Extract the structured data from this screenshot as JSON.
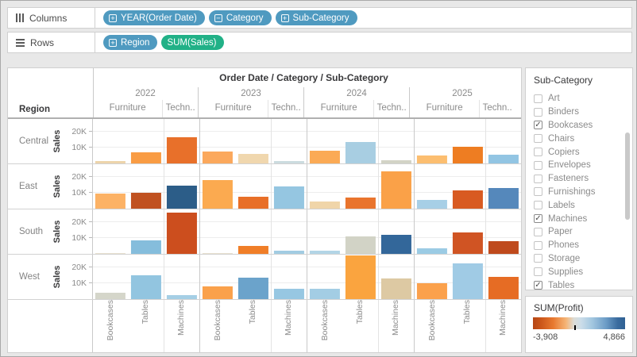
{
  "shelves": {
    "columns": {
      "label": "Columns",
      "pills": [
        {
          "label": "YEAR(Order Date)",
          "icon": "plus",
          "kind": "dimension"
        },
        {
          "label": "Category",
          "icon": "minus",
          "kind": "dimension"
        },
        {
          "label": "Sub-Category",
          "icon": "plus",
          "kind": "dimension"
        }
      ]
    },
    "rows": {
      "label": "Rows",
      "pills": [
        {
          "label": "Region",
          "icon": "plus",
          "kind": "dimension"
        },
        {
          "label": "SUM(Sales)",
          "icon": "none",
          "kind": "measure"
        }
      ]
    }
  },
  "colors": {
    "dimension_pill": "#4f9ac0",
    "measure_pill": "#21b187"
  },
  "chart_data": {
    "type": "bar",
    "title": "Order Date / Category / Sub-Category",
    "row_field": "Region",
    "years": [
      "2022",
      "2023",
      "2024",
      "2025"
    ],
    "categories": [
      "Furniture",
      "Techn.."
    ],
    "subcategories": [
      "Bookcases",
      "Tables",
      "Machines"
    ],
    "ylabel": "Sales",
    "yticks": [
      "20K",
      "10K"
    ],
    "ylim_k": [
      0,
      28
    ],
    "units": "sales values in thousands (K); bar colors encode SUM(Profit) diverging orange-blue",
    "rows": [
      {
        "region": "Central",
        "cells": [
          {
            "year": "2022",
            "values": [
              1.7,
              7.0,
              16.5
            ],
            "colors": [
              "#edd4ab",
              "#f99c44",
              "#e8702a"
            ]
          },
          {
            "year": "2023",
            "values": [
              7.5,
              6.0,
              1.3
            ],
            "colors": [
              "#fba85c",
              "#f0d7ae",
              "#ccdcdf"
            ]
          },
          {
            "year": "2024",
            "values": [
              7.8,
              13.5,
              2.0
            ],
            "colors": [
              "#fbaa55",
              "#a8cee2",
              "#d2d3c6"
            ]
          },
          {
            "year": "2025",
            "values": [
              5.2,
              10.3,
              5.5
            ],
            "colors": [
              "#fcbe70",
              "#ee7d22",
              "#92c5e3"
            ]
          }
        ]
      },
      {
        "region": "East",
        "cells": [
          {
            "year": "2022",
            "values": [
              9.4,
              10.0,
              14.4
            ],
            "colors": [
              "#fcb265",
              "#c05120",
              "#2c5d88"
            ]
          },
          {
            "year": "2023",
            "values": [
              18.0,
              7.4,
              13.8
            ],
            "colors": [
              "#fbaa50",
              "#e86f28",
              "#95c6e1"
            ]
          },
          {
            "year": "2024",
            "values": [
              4.4,
              6.9,
              23.5
            ],
            "colors": [
              "#f0d5a9",
              "#e9742d",
              "#faa148"
            ]
          },
          {
            "year": "2025",
            "values": [
              5.4,
              11.3,
              12.8
            ],
            "colors": [
              "#a7cfe6",
              "#d85a21",
              "#5588bb"
            ]
          }
        ]
      },
      {
        "region": "South",
        "cells": [
          {
            "year": "2022",
            "values": [
              0.3,
              8.3,
              26.0
            ],
            "colors": [
              "#e8e0cf",
              "#85bddc",
              "#cc4e1e"
            ]
          },
          {
            "year": "2023",
            "values": [
              0.4,
              5.0,
              2.1
            ],
            "colors": [
              "#e8e0cf",
              "#f07e28",
              "#a2cce2"
            ]
          },
          {
            "year": "2024",
            "values": [
              2.1,
              10.8,
              12.2
            ],
            "colors": [
              "#b3d5e6",
              "#d2d3c6",
              "#33679a"
            ]
          },
          {
            "year": "2025",
            "values": [
              3.3,
              13.3,
              7.8
            ],
            "colors": [
              "#9bcbe4",
              "#d05423",
              "#bf4a1d"
            ]
          }
        ]
      },
      {
        "region": "West",
        "cells": [
          {
            "year": "2022",
            "values": [
              4.1,
              15.2,
              2.4
            ],
            "colors": [
              "#d5d6ca",
              "#92c5e0",
              "#a5cfe5"
            ]
          },
          {
            "year": "2023",
            "values": [
              8.0,
              13.5,
              6.5
            ],
            "colors": [
              "#faa14b",
              "#6ba3cb",
              "#97c7e2"
            ]
          },
          {
            "year": "2024",
            "values": [
              6.5,
              27.5,
              13.0
            ],
            "colors": [
              "#a3cde4",
              "#faa43f",
              "#ddc9a3"
            ]
          },
          {
            "year": "2025",
            "values": [
              10.0,
              22.5,
              14.0
            ],
            "colors": [
              "#fba14c",
              "#a0cbe5",
              "#e66c24"
            ]
          }
        ]
      }
    ]
  },
  "filter": {
    "title": "Sub-Category",
    "items": [
      {
        "label": "Art",
        "checked": false
      },
      {
        "label": "Binders",
        "checked": false
      },
      {
        "label": "Bookcases",
        "checked": true
      },
      {
        "label": "Chairs",
        "checked": false
      },
      {
        "label": "Copiers",
        "checked": false
      },
      {
        "label": "Envelopes",
        "checked": false
      },
      {
        "label": "Fasteners",
        "checked": false
      },
      {
        "label": "Furnishings",
        "checked": false
      },
      {
        "label": "Labels",
        "checked": false
      },
      {
        "label": "Machines",
        "checked": true
      },
      {
        "label": "Paper",
        "checked": false
      },
      {
        "label": "Phones",
        "checked": false
      },
      {
        "label": "Storage",
        "checked": false
      },
      {
        "label": "Supplies",
        "checked": false
      },
      {
        "label": "Tables",
        "checked": true
      }
    ]
  },
  "legend": {
    "title": "SUM(Profit)",
    "min": "-3,908",
    "max": "4,866"
  }
}
